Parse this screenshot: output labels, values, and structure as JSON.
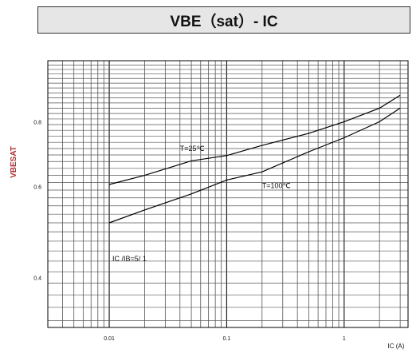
{
  "chart_data": {
    "type": "line",
    "title": "VBE（sat）- IC",
    "xlabel": "IC (A)",
    "ylabel": "VBESAT",
    "x_scale": "log",
    "y_scale": "log",
    "xlim": [
      0.003,
      3.5
    ],
    "ylim": [
      0.32,
      1.05
    ],
    "x_ticks": [
      0.01,
      0.1,
      1
    ],
    "x_tick_labels": [
      "0.01",
      "0.1",
      "1"
    ],
    "y_ticks": [
      0.4,
      0.6,
      0.8
    ],
    "y_tick_labels": [
      "0.4",
      "0.6",
      "0.8"
    ],
    "grid": true,
    "series": [
      {
        "name": "T=25℃",
        "x": [
          0.01,
          0.02,
          0.05,
          0.1,
          0.2,
          0.5,
          1,
          2,
          3
        ],
        "y": [
          0.605,
          0.63,
          0.672,
          0.688,
          0.72,
          0.76,
          0.8,
          0.85,
          0.9
        ],
        "color": "#000000"
      },
      {
        "name": "T=100℃",
        "x": [
          0.01,
          0.02,
          0.05,
          0.1,
          0.2,
          0.5,
          1,
          2,
          3
        ],
        "y": [
          0.51,
          0.54,
          0.58,
          0.617,
          0.64,
          0.7,
          0.745,
          0.8,
          0.85
        ],
        "color": "#000000"
      }
    ],
    "annotations": {
      "t25": "T=25℃",
      "t100": "T=100℃",
      "ratio": "IC /IB=5/ 1"
    }
  }
}
